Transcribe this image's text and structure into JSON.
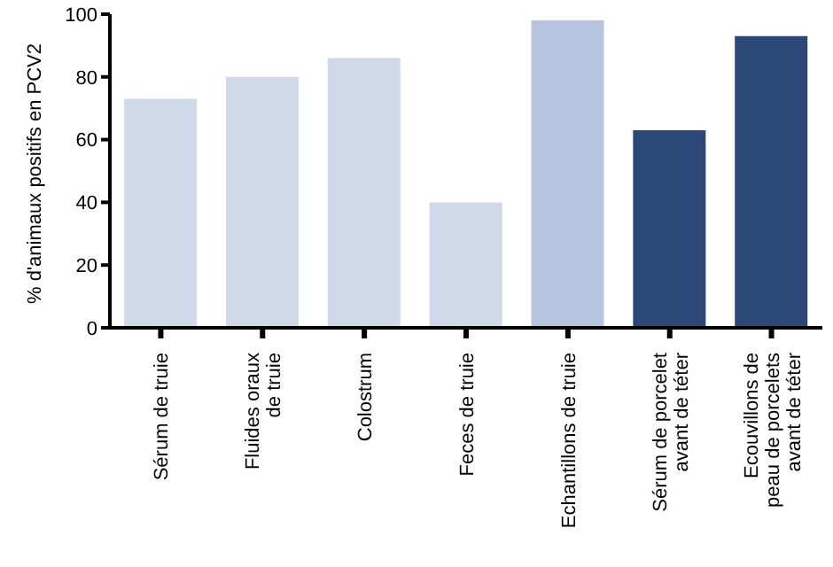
{
  "chart_data": {
    "type": "bar",
    "ylabel": "% d'animaux positifs en PCV2",
    "categories": [
      "Sérum de truie",
      "Fluides oraux\nde truie",
      "Colostrum",
      "Feces de truie",
      "Echantillons de truie",
      "Sérum de porcelet\navant de téter",
      "Ecouvillons de\npeau de porcelets\navant de téter"
    ],
    "values": [
      73,
      80,
      86,
      40,
      98,
      63,
      93
    ],
    "colors": [
      "#cfd9ea",
      "#cfd9ea",
      "#cfd9ea",
      "#cfd9ea",
      "#b6c4df",
      "#2b4878",
      "#2b4878"
    ],
    "ylim": [
      0,
      100
    ],
    "yticks": [
      0,
      20,
      40,
      60,
      80,
      100
    ],
    "grid": false,
    "legend": false
  }
}
